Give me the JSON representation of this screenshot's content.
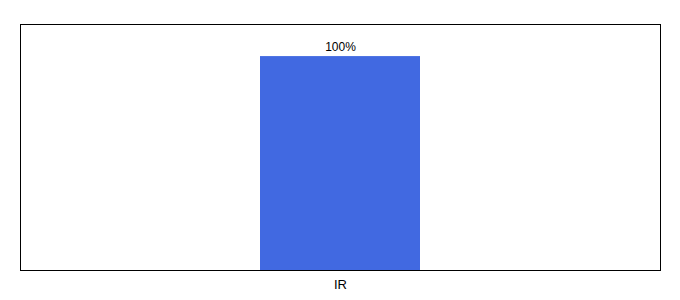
{
  "chart_data": {
    "type": "bar",
    "categories": [
      "IR"
    ],
    "values": [
      100
    ],
    "value_labels": [
      "100%"
    ],
    "color": "#4169E1",
    "ylim": [
      0,
      115
    ],
    "data_labels": true,
    "tick_labels": "x",
    "grid": false
  }
}
